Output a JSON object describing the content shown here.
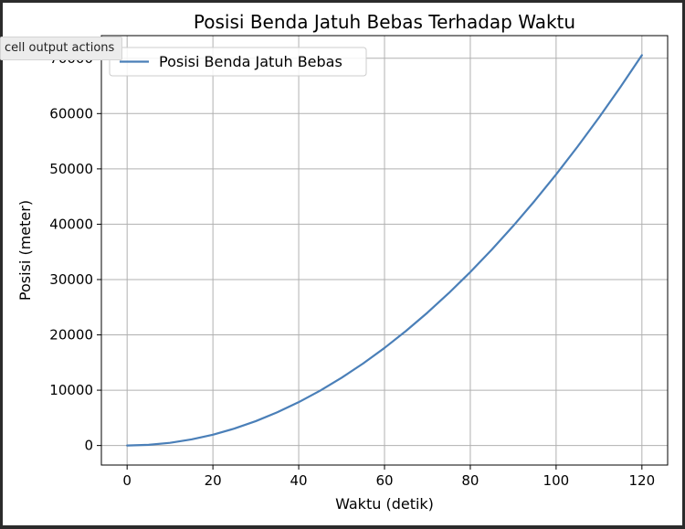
{
  "cell": {
    "actions_label": "cell output actions"
  },
  "chart_data": {
    "type": "line",
    "title": "Posisi Benda Jatuh Bebas Terhadap Waktu",
    "xlabel": "Waktu (detik)",
    "ylabel": "Posisi (meter)",
    "xlim": [
      -6,
      126
    ],
    "ylim": [
      -3528,
      74088
    ],
    "grid": true,
    "legend_position": "upper-left",
    "x_ticks": [
      0,
      20,
      40,
      60,
      80,
      100,
      120
    ],
    "y_ticks": [
      0,
      10000,
      20000,
      30000,
      40000,
      50000,
      60000,
      70000
    ],
    "series": [
      {
        "name": "Posisi Benda Jatuh Bebas",
        "color": "#4a7fb8",
        "x": [
          0,
          5,
          10,
          15,
          20,
          25,
          30,
          35,
          40,
          45,
          50,
          55,
          60,
          65,
          70,
          75,
          80,
          85,
          90,
          95,
          100,
          105,
          110,
          115,
          120
        ],
        "y": [
          0,
          122.5,
          490,
          1102.5,
          1960,
          3062.5,
          4410,
          6002.5,
          7840,
          9922.5,
          12250,
          14822.5,
          17640,
          20702.5,
          24010,
          27562.5,
          31360,
          35402.5,
          39690,
          44222.5,
          49000,
          54022.5,
          59290,
          64802.5,
          70560
        ]
      }
    ]
  }
}
